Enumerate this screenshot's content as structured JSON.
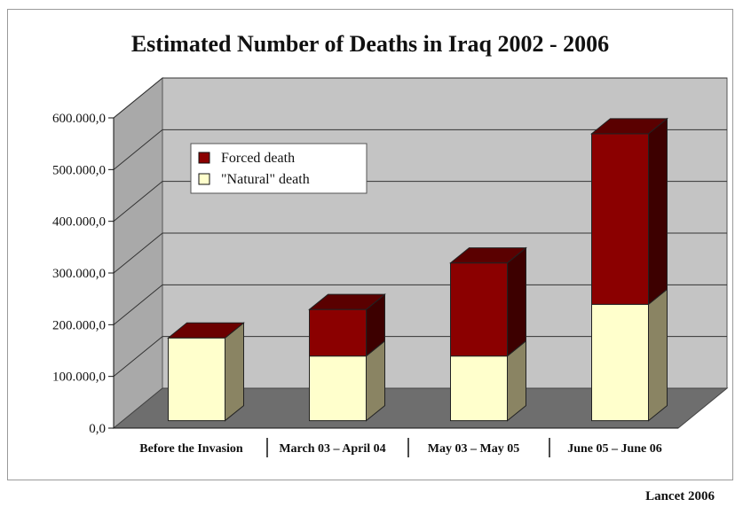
{
  "chart_data": {
    "type": "bar",
    "stacked": true,
    "three_d": true,
    "title": "Estimated Number of Deaths in Iraq 2002 - 2006",
    "categories": [
      "Before the Invasion",
      "March 03 – April 04",
      "May 03 – May 05",
      "June 05 – June 06"
    ],
    "series": [
      {
        "name": "\"Natural\" death",
        "values": [
          160000,
          125000,
          125000,
          225000
        ],
        "color": "#FFFFCC"
      },
      {
        "name": "Forced death",
        "values": [
          0,
          90000,
          180000,
          330000
        ],
        "color": "#8B0000"
      }
    ],
    "yticks": [
      "0,0",
      "100.000,0",
      "200.000,0",
      "300.000,0",
      "400.000,0",
      "500.000,0",
      "600.000,0"
    ],
    "ylim": [
      0,
      600000
    ],
    "grid": true,
    "legend_position": "top-left"
  },
  "source": "Lancet 2006"
}
